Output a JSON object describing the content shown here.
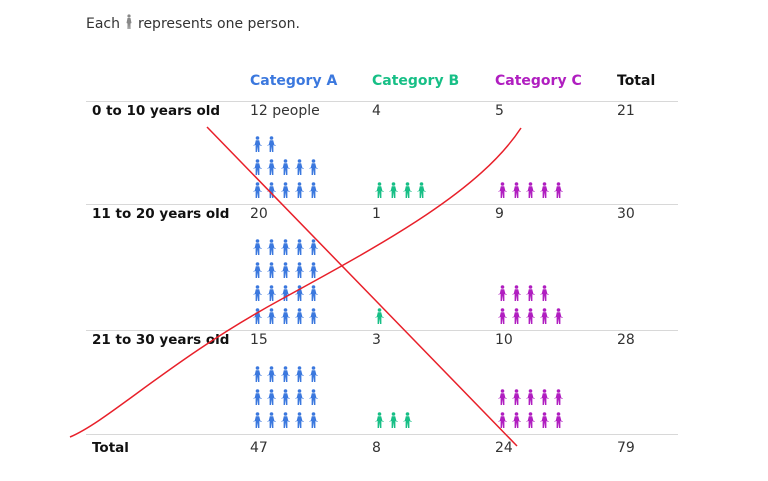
{
  "caption": {
    "before": "Each",
    "after": "represents one person.",
    "icon": "person-icon",
    "icon_color": "#888888"
  },
  "chart_data": {
    "type": "pictograph-table",
    "unit": "one person per icon",
    "columns": [
      "Category A",
      "Category B",
      "Category C",
      "Total"
    ],
    "column_colors": [
      "#3b78de",
      "#17bf86",
      "#b01ec0",
      "#111111"
    ],
    "rows": [
      {
        "label": "0 to 10 years old",
        "display": [
          "12 people",
          "4",
          "5",
          "21"
        ],
        "values": [
          12,
          4,
          5
        ],
        "total": 21
      },
      {
        "label": "11 to 20 years old",
        "display": [
          "20",
          "1",
          "9",
          "30"
        ],
        "values": [
          20,
          1,
          9
        ],
        "total": 30
      },
      {
        "label": "21 to 30 years old",
        "display": [
          "15",
          "3",
          "10",
          "28"
        ],
        "values": [
          15,
          3,
          10
        ],
        "total": 28
      }
    ],
    "totals": {
      "label": "Total",
      "display": [
        "47",
        "8",
        "24",
        "79"
      ]
    },
    "icons_per_row": 5
  },
  "annotation": {
    "type": "red cross-out strokes",
    "color": "#e8202a"
  }
}
